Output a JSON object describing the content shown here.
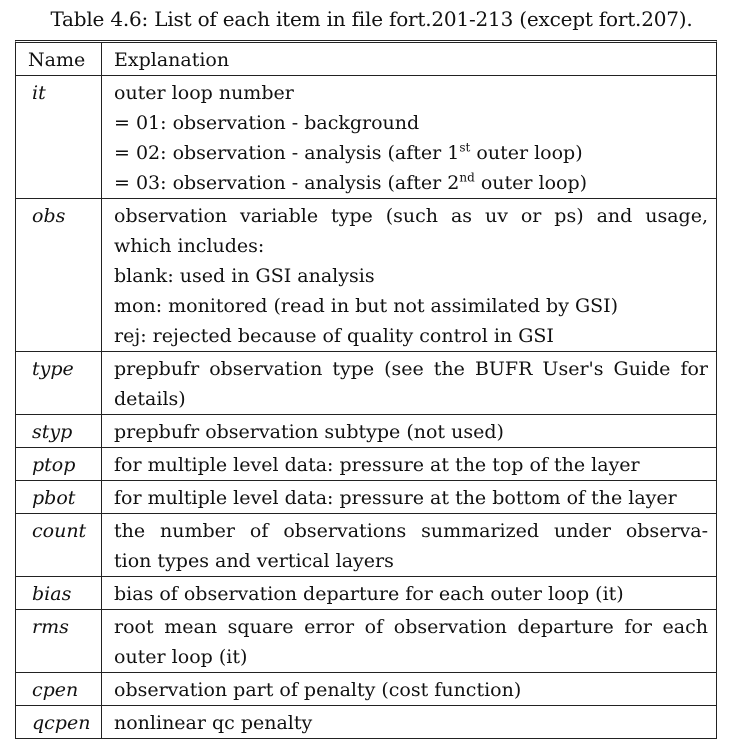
{
  "caption": "Table 4.6: List of each item in file fort.201-213 (except fort.207).",
  "header": {
    "name": "Name",
    "explanation": "Explanation"
  },
  "rows": [
    {
      "name": "it",
      "lines": [
        "outer loop number",
        "= 01: observation - background",
        "= 02: observation - analysis (after 1",
        "= 03: observation - analysis (after 2"
      ],
      "sup": [
        "st",
        "nd"
      ],
      "tail": "outer loop)"
    },
    {
      "name": "obs",
      "lines": [
        "observation variable type (such as uv or ps) and usage,",
        "which includes:",
        "blank: used in GSI analysis",
        "mon: monitored (read in but not assimilated by GSI)",
        "rej: rejected because of quality control in GSI"
      ]
    },
    {
      "name": "type",
      "lines": [
        "prepbufr observation type (see the BUFR User's Guide for",
        "details)"
      ]
    },
    {
      "name": "styp",
      "lines": [
        "prepbufr observation subtype (not used)"
      ]
    },
    {
      "name": "ptop",
      "lines": [
        "for multiple level data: pressure at the top of the layer"
      ]
    },
    {
      "name": "pbot",
      "lines": [
        "for multiple level data: pressure at the bottom of the layer"
      ]
    },
    {
      "name": "count",
      "lines": [
        "the number of observations summarized under observa-",
        "tion types and vertical layers"
      ]
    },
    {
      "name": "bias",
      "lines": [
        "bias of observation departure for each outer loop (it)"
      ]
    },
    {
      "name": "rms",
      "lines": [
        "root mean square error of observation departure for each",
        "outer loop (it)"
      ]
    },
    {
      "name": "cpen",
      "lines": [
        "observation part of penalty (cost function)"
      ]
    },
    {
      "name": "qcpen",
      "lines": [
        "nonlinear qc penalty"
      ]
    }
  ]
}
